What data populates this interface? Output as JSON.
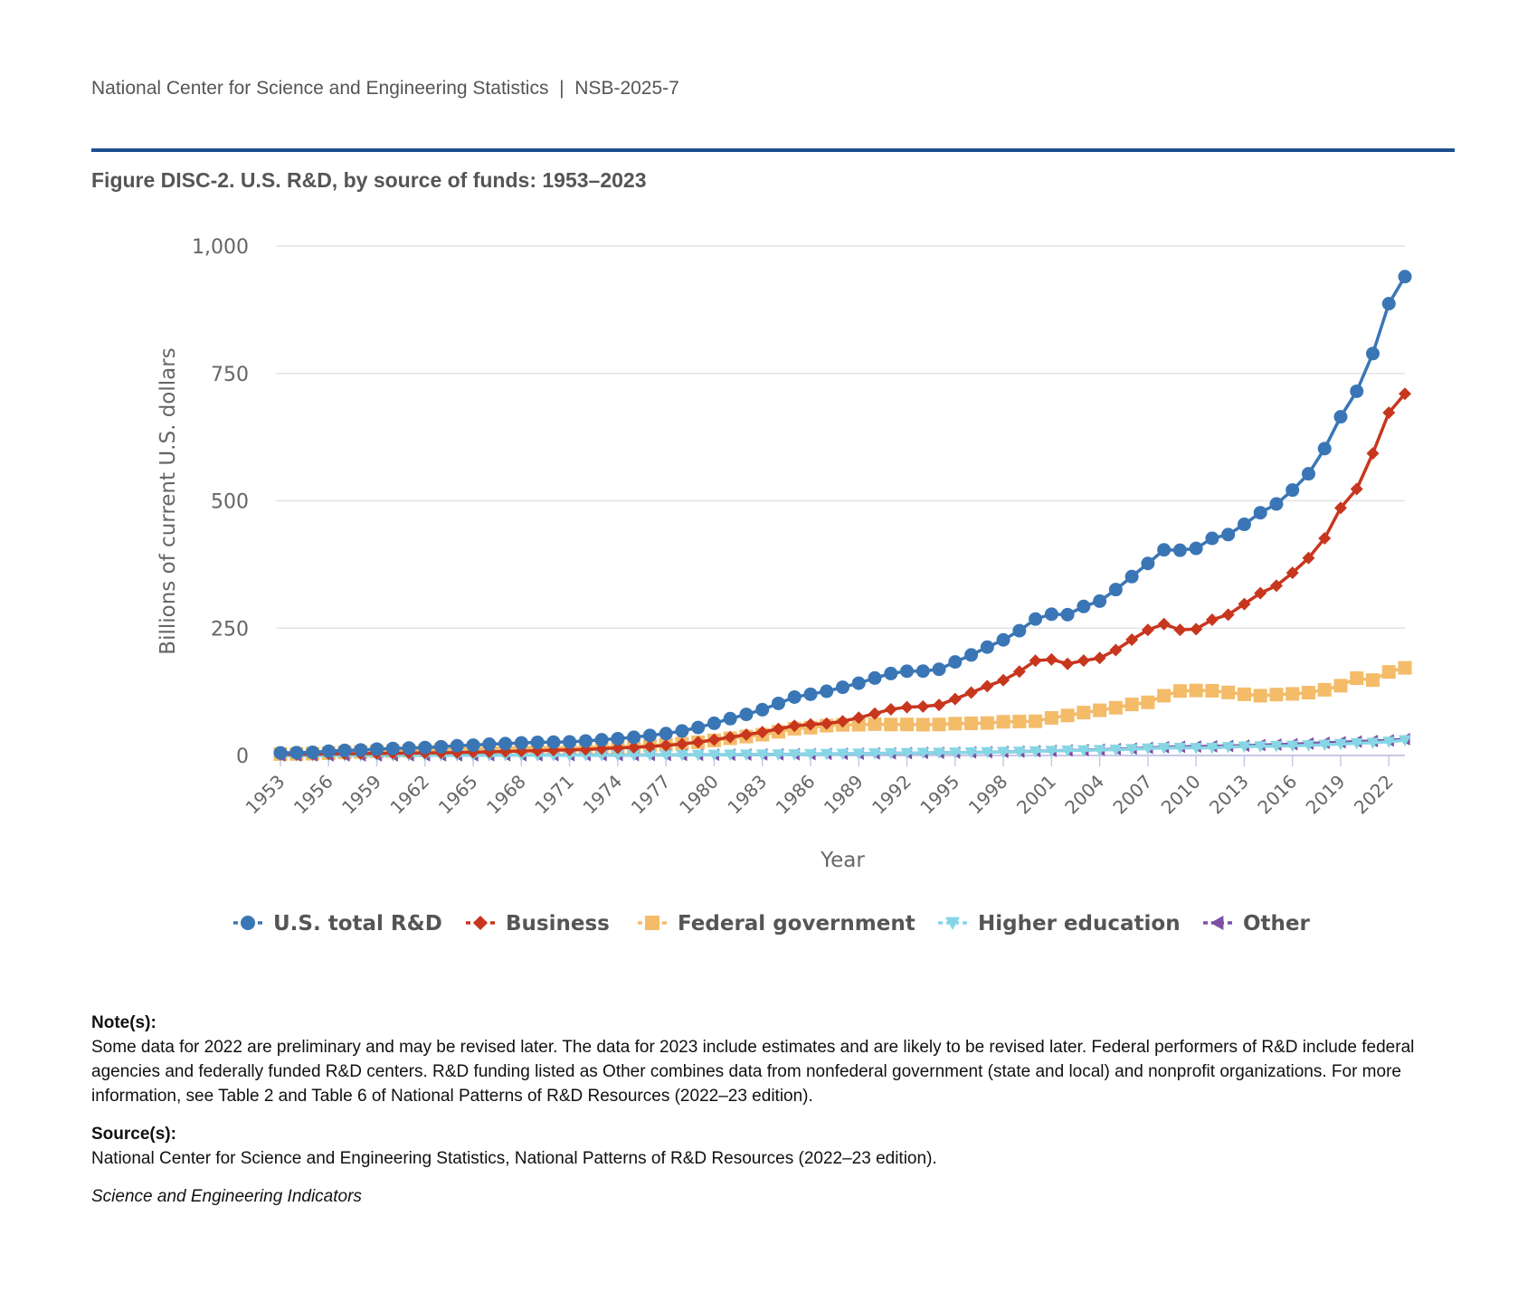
{
  "header": {
    "org": "National Center for Science and Engineering Statistics",
    "separator": "|",
    "report": "NSB-2025-7"
  },
  "figure_title": "Figure DISC-2. U.S. R&D, by source of funds: 1953–2023",
  "notes": {
    "note_head": "Note(s):",
    "note_text": "Some data for 2022 are preliminary and may be revised later. The data for 2023 include estimates and are likely to be revised later. Federal performers of R&D include federal agencies and federally funded R&D centers. R&D funding listed as Other combines data from nonfederal government (state and local) and nonprofit organizations. For more information, see Table 2 and Table 6 of National Patterns of R&D Resources (2022–23 edition).",
    "source_head": "Source(s):",
    "source_text": "National Center for Science and Engineering Statistics, National Patterns of R&D Resources (2022–23 edition).",
    "brand": "Science and Engineering Indicators"
  },
  "chart_data": {
    "type": "line",
    "xlabel": "Year",
    "ylabel": "Billions of current U.S. dollars",
    "ylim": [
      0,
      1000
    ],
    "yticks": [
      0,
      250,
      500,
      750,
      1000
    ],
    "ytick_labels": [
      "0",
      "250",
      "500",
      "750",
      "1,000"
    ],
    "x_start": 1953,
    "x_end": 2023,
    "xticks": [
      1953,
      1956,
      1959,
      1962,
      1965,
      1968,
      1971,
      1974,
      1977,
      1980,
      1983,
      1986,
      1989,
      1992,
      1995,
      1998,
      2001,
      2004,
      2007,
      2010,
      2013,
      2016,
      2019,
      2022
    ],
    "grid": true,
    "legend": "bottom",
    "series": [
      {
        "name": "U.S. total R&D",
        "color": "#3a76b5",
        "marker": "circle",
        "values": [
          5.2,
          5.6,
          6.3,
          8.5,
          9.9,
          10.9,
          12.5,
          13.7,
          14.6,
          15.6,
          17.2,
          19.1,
          20.3,
          22.1,
          23.3,
          24.7,
          25.8,
          26.3,
          26.7,
          28.5,
          30.8,
          32.9,
          35.7,
          39.4,
          43.0,
          48.1,
          54.9,
          63.2,
          72.3,
          80.7,
          89.9,
          102.2,
          114.6,
          120.2,
          126.0,
          133.9,
          141.9,
          152.0,
          160.9,
          165.4,
          165.7,
          169.2,
          183.6,
          197.3,
          212.7,
          226.9,
          245.0,
          267.9,
          277.4,
          276.5,
          292.6,
          303.0,
          325.6,
          351.2,
          377.0,
          403.7,
          402.9,
          406.6,
          426.2,
          433.6,
          453.8,
          476.5,
          493.7,
          521.0,
          553.0,
          602.4,
          664.9,
          715.0,
          789.0,
          887.0,
          940.0
        ]
      },
      {
        "name": "Business",
        "color": "#c8361e",
        "marker": "diamond",
        "values": [
          2.2,
          2.3,
          2.5,
          3.3,
          3.4,
          3.7,
          4.1,
          4.5,
          4.7,
          5.0,
          5.4,
          5.8,
          6.5,
          7.2,
          7.9,
          8.6,
          9.4,
          10.4,
          10.8,
          11.7,
          13.3,
          14.9,
          15.8,
          17.7,
          19.7,
          22.5,
          26.1,
          30.9,
          35.9,
          40.8,
          45.7,
          52.2,
          58.1,
          61.0,
          62.6,
          67.1,
          74.1,
          82.2,
          90.6,
          94.9,
          96.2,
          99.2,
          110.9,
          123.4,
          136.2,
          147.8,
          164.7,
          186.1,
          188.4,
          179.9,
          186.2,
          191.3,
          207.0,
          227.3,
          246.5,
          258.1,
          246.6,
          248.1,
          266.4,
          276.5,
          297.3,
          318.7,
          333.2,
          358.5,
          387.6,
          426.2,
          486.1,
          523.1,
          593.0,
          673.0,
          710.0
        ]
      },
      {
        "name": "Federal government",
        "color": "#f4bc69",
        "marker": "square",
        "values": [
          2.8,
          3.0,
          3.5,
          4.5,
          6.1,
          6.9,
          8.2,
          8.7,
          9.3,
          9.9,
          11.2,
          12.5,
          13.0,
          14.0,
          14.6,
          15.2,
          15.2,
          14.8,
          14.9,
          15.8,
          16.4,
          16.9,
          18.1,
          19.6,
          21.0,
          23.3,
          25.9,
          29.5,
          33.7,
          37.1,
          40.8,
          46.5,
          52.6,
          54.6,
          58.5,
          60.1,
          60.4,
          61.6,
          60.8,
          60.9,
          60.5,
          60.9,
          62.5,
          63.1,
          63.7,
          66.1,
          66.7,
          67.2,
          73.8,
          78.5,
          84.2,
          88.7,
          93.7,
          100.2,
          104.3,
          117.2,
          126.6,
          127.6,
          127.0,
          123.8,
          120.1,
          117.4,
          119.5,
          120.9,
          123.4,
          129.0,
          137.0,
          151.8,
          148.0,
          164.0,
          172.0
        ]
      },
      {
        "name": "Higher education",
        "color": "#86d6e6",
        "marker": "triangle-down",
        "values": [
          0.1,
          0.1,
          0.1,
          0.1,
          0.1,
          0.1,
          0.1,
          0.2,
          0.2,
          0.2,
          0.2,
          0.3,
          0.3,
          0.3,
          0.4,
          0.4,
          0.4,
          0.5,
          0.5,
          0.6,
          0.6,
          0.7,
          0.8,
          0.8,
          0.9,
          1.0,
          1.1,
          1.3,
          1.5,
          1.7,
          1.8,
          2.0,
          2.2,
          2.6,
          2.9,
          3.3,
          3.6,
          4.0,
          4.4,
          4.8,
          5.1,
          5.3,
          5.6,
          6.0,
          6.4,
          6.9,
          7.4,
          8.0,
          8.9,
          9.7,
          10.2,
          10.8,
          11.4,
          12.5,
          13.6,
          14.6,
          15.2,
          14.8,
          15.1,
          16.4,
          17.5,
          18.0,
          18.5,
          19.2,
          20.0,
          21.2,
          22.5,
          24.0,
          25.0,
          27.0,
          30.0
        ]
      },
      {
        "name": "Other",
        "color": "#7e4fa5",
        "marker": "triangle-left",
        "values": [
          0.1,
          0.1,
          0.2,
          0.2,
          0.2,
          0.2,
          0.3,
          0.3,
          0.4,
          0.4,
          0.5,
          0.5,
          0.5,
          0.6,
          0.6,
          0.6,
          0.7,
          0.7,
          0.7,
          0.8,
          0.8,
          0.9,
          0.9,
          1.0,
          1.1,
          1.2,
          1.4,
          1.5,
          1.6,
          1.8,
          2.0,
          2.2,
          2.4,
          2.7,
          3.0,
          3.3,
          3.6,
          3.9,
          4.3,
          4.7,
          5.0,
          5.3,
          5.6,
          6.0,
          6.5,
          7.0,
          7.6,
          8.4,
          9.2,
          9.9,
          10.6,
          11.3,
          12.4,
          13.6,
          14.9,
          16.1,
          17.1,
          17.6,
          18.0,
          18.6,
          19.4,
          20.5,
          21.3,
          22.3,
          23.5,
          24.8,
          26.0,
          27.3,
          28.5,
          29.5,
          32.0
        ]
      }
    ]
  }
}
